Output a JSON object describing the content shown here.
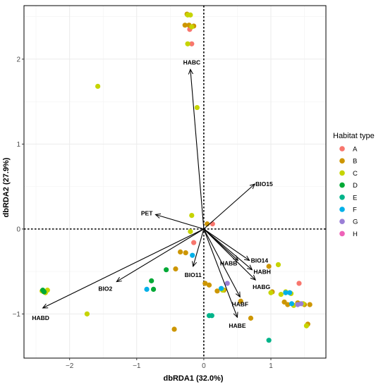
{
  "chart_data": {
    "type": "scatter",
    "xlabel": "dbRDA1 (32.0%)",
    "ylabel": "dbRDA2 (27.9%)",
    "xlim": [
      -2.68,
      1.82
    ],
    "ylim": [
      -1.52,
      2.63
    ],
    "xticks": [
      -2,
      -1,
      0,
      1
    ],
    "yticks": [
      -1,
      0,
      1,
      2
    ],
    "grid": true,
    "reference_lines": {
      "x": 0,
      "y": 0,
      "style": "dotted"
    },
    "legend": {
      "title": "Habitat type",
      "placement": "right",
      "entries": [
        {
          "label": "A",
          "color": "#F8766D"
        },
        {
          "label": "B",
          "color": "#CD9600"
        },
        {
          "label": "C",
          "color": "#C6D400"
        },
        {
          "label": "D",
          "color": "#00A936"
        },
        {
          "label": "E",
          "color": "#00B48A"
        },
        {
          "label": "F",
          "color": "#00B0E8"
        },
        {
          "label": "G",
          "color": "#9A7FD6"
        },
        {
          "label": "H",
          "color": "#EE62B8"
        }
      ]
    },
    "series": [
      {
        "name": "A",
        "points": [
          [
            -0.21,
            2.35
          ],
          [
            -0.15,
            -0.16
          ],
          [
            0.13,
            0.06
          ],
          [
            1.42,
            -0.64
          ],
          [
            -0.18,
            2.18
          ]
        ]
      },
      {
        "name": "B",
        "points": [
          [
            -0.25,
            2.53
          ],
          [
            -0.28,
            2.4
          ],
          [
            -0.22,
            2.4
          ],
          [
            -0.15,
            2.39
          ],
          [
            0.05,
            0.06
          ],
          [
            -0.35,
            -0.27
          ],
          [
            -0.27,
            -0.28
          ],
          [
            -0.42,
            -0.47
          ],
          [
            0.02,
            -0.64
          ],
          [
            0.08,
            -0.66
          ],
          [
            0.2,
            -0.73
          ],
          [
            0.3,
            -0.72
          ],
          [
            0.55,
            -0.85
          ],
          [
            0.97,
            -0.44
          ],
          [
            1.02,
            -0.74
          ],
          [
            1.2,
            -0.86
          ],
          [
            1.25,
            -0.89
          ],
          [
            1.4,
            -0.87
          ],
          [
            1.5,
            -0.89
          ],
          [
            1.58,
            -0.89
          ],
          [
            1.55,
            -1.12
          ],
          [
            -0.44,
            -1.18
          ],
          [
            0.7,
            -1.05
          ]
        ]
      },
      {
        "name": "C",
        "points": [
          [
            -0.2,
            2.52
          ],
          [
            -0.24,
            2.52
          ],
          [
            -0.18,
            2.38
          ],
          [
            -0.24,
            2.18
          ],
          [
            -0.1,
            1.43
          ],
          [
            -1.58,
            1.68
          ],
          [
            -0.18,
            0.16
          ],
          [
            -0.2,
            -0.03
          ],
          [
            -2.33,
            -0.72
          ],
          [
            -2.41,
            -0.73
          ],
          [
            -2.36,
            -0.75
          ],
          [
            -1.74,
            -1.0
          ],
          [
            1.11,
            -0.42
          ],
          [
            1.0,
            -0.75
          ],
          [
            1.15,
            -0.77
          ],
          [
            1.22,
            -0.74
          ],
          [
            1.3,
            -0.76
          ],
          [
            1.34,
            -0.9
          ],
          [
            1.48,
            -0.88
          ],
          [
            1.53,
            -1.14
          ],
          [
            0.28,
            -0.72
          ]
        ]
      },
      {
        "name": "D",
        "points": [
          [
            -2.4,
            -0.72
          ],
          [
            -2.38,
            -0.74
          ],
          [
            -0.78,
            -0.61
          ],
          [
            -0.75,
            -0.71
          ],
          [
            -0.56,
            -0.48
          ]
        ]
      },
      {
        "name": "E",
        "points": [
          [
            0.08,
            -1.02
          ],
          [
            0.12,
            -1.02
          ],
          [
            0.97,
            -1.31
          ]
        ]
      },
      {
        "name": "F",
        "points": [
          [
            -0.85,
            -0.71
          ],
          [
            -0.17,
            -0.31
          ],
          [
            0.26,
            -0.7
          ],
          [
            1.22,
            -0.75
          ],
          [
            1.28,
            -0.75
          ],
          [
            1.31,
            -0.88
          ]
        ]
      },
      {
        "name": "G",
        "points": [
          [
            0.35,
            -0.64
          ],
          [
            1.4,
            -0.89
          ],
          [
            1.45,
            -0.88
          ]
        ]
      },
      {
        "name": "H",
        "points": []
      }
    ],
    "vectors": [
      {
        "label": "HABC",
        "x": -0.2,
        "y": 1.88
      },
      {
        "label": "BIO15",
        "x": 0.76,
        "y": 0.53
      },
      {
        "label": "PET",
        "x": -0.72,
        "y": 0.17
      },
      {
        "label": "BIO14",
        "x": 0.68,
        "y": -0.37
      },
      {
        "label": "HABB",
        "x": 0.51,
        "y": -0.37
      },
      {
        "label": "HABH",
        "x": 0.72,
        "y": -0.48
      },
      {
        "label": "HABG",
        "x": 0.77,
        "y": -0.6
      },
      {
        "label": "HABF",
        "x": 0.54,
        "y": -0.8
      },
      {
        "label": "HABE",
        "x": 0.5,
        "y": -1.04
      },
      {
        "label": "BIO11",
        "x": -0.16,
        "y": -0.44
      },
      {
        "label": "BIO2",
        "x": -1.3,
        "y": -0.62
      },
      {
        "label": "HABD",
        "x": -2.4,
        "y": -0.93
      }
    ]
  }
}
